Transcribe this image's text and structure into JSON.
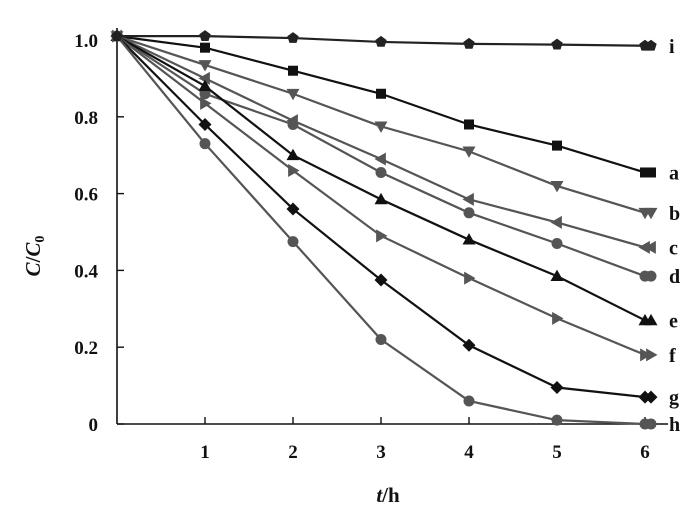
{
  "chart_data": {
    "type": "line",
    "xlabel_var": "t",
    "xlabel_unit": "/h",
    "ylabel_var": "C",
    "ylabel_sep": "/",
    "ylabel_sub_var": "C",
    "ylabel_sub": "0",
    "xlim": [
      0,
      6.2
    ],
    "ylim": [
      0,
      1.05
    ],
    "x_ticks": [
      1,
      2,
      3,
      4,
      5,
      6
    ],
    "x_tick_labels": [
      "1",
      "2",
      "3",
      "4",
      "5",
      "6"
    ],
    "y_ticks": [
      0,
      0.2,
      0.4,
      0.6,
      0.8,
      1.0
    ],
    "y_tick_labels": [
      "0",
      "0.2",
      "0.4",
      "0.6",
      "0.8",
      "1.0"
    ],
    "grid": false,
    "x": [
      0,
      1,
      2,
      3,
      4,
      5,
      6
    ],
    "series": [
      {
        "name": "a",
        "marker": "square",
        "color": "#111111",
        "values": [
          1.01,
          0.98,
          0.92,
          0.86,
          0.78,
          0.725,
          0.655
        ]
      },
      {
        "name": "b",
        "marker": "triangle-down",
        "color": "#555555",
        "values": [
          1.01,
          0.935,
          0.86,
          0.775,
          0.71,
          0.62,
          0.55
        ]
      },
      {
        "name": "c",
        "marker": "triangle-left",
        "color": "#555555",
        "values": [
          1.01,
          0.9,
          0.79,
          0.69,
          0.585,
          0.525,
          0.46
        ]
      },
      {
        "name": "d",
        "marker": "circle",
        "color": "#555555",
        "values": [
          1.01,
          0.86,
          0.78,
          0.655,
          0.55,
          0.47,
          0.385
        ]
      },
      {
        "name": "e",
        "marker": "triangle-up",
        "color": "#111111",
        "values": [
          1.01,
          0.88,
          0.7,
          0.585,
          0.48,
          0.385,
          0.27
        ]
      },
      {
        "name": "f",
        "marker": "triangle-right",
        "color": "#555555",
        "values": [
          1.01,
          0.835,
          0.66,
          0.49,
          0.38,
          0.275,
          0.18
        ]
      },
      {
        "name": "g",
        "marker": "diamond",
        "color": "#111111",
        "values": [
          1.01,
          0.78,
          0.56,
          0.375,
          0.205,
          0.095,
          0.07
        ]
      },
      {
        "name": "h",
        "marker": "circle",
        "color": "#555555",
        "values": [
          1.01,
          0.73,
          0.475,
          0.22,
          0.06,
          0.01,
          0.0
        ]
      },
      {
        "name": "i",
        "marker": "pentagon",
        "color": "#222222",
        "values": [
          1.01,
          1.01,
          1.005,
          0.995,
          0.99,
          0.988,
          0.985
        ]
      }
    ]
  }
}
